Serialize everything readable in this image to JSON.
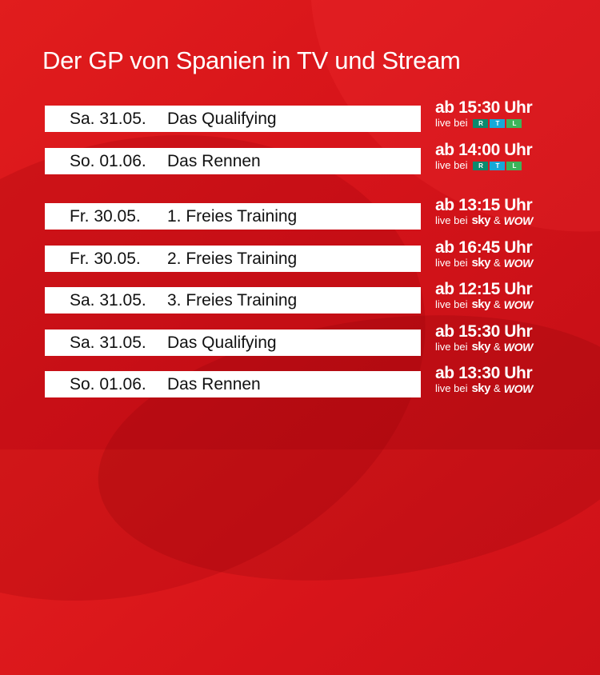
{
  "title": "Der GP von Spanien in TV und Stream",
  "colors": {
    "background": "#d7141a",
    "bar": "#ffffff",
    "text_dark": "#111111",
    "text_light": "#ffffff"
  },
  "groups": [
    {
      "channel": "RTL",
      "rows": [
        {
          "date": "Sa. 31.05.",
          "event": "Das Qualifying",
          "time": "ab 15:30 Uhr",
          "live_prefix": "live bei",
          "logo_letters": [
            "R",
            "T",
            "L"
          ]
        },
        {
          "date": "So. 01.06.",
          "event": "Das Rennen",
          "time": "ab 14:00 Uhr",
          "live_prefix": "live bei",
          "logo_letters": [
            "R",
            "T",
            "L"
          ]
        }
      ]
    },
    {
      "channel": "Sky & WOW",
      "rows": [
        {
          "date": "Fr. 30.05.",
          "event": "1. Freies Training",
          "time": "ab 13:15 Uhr",
          "live_prefix": "live bei",
          "logo_sky": "sky",
          "amp": "&",
          "logo_wow": "WOW"
        },
        {
          "date": "Fr. 30.05.",
          "event": "2. Freies Training",
          "time": "ab 16:45 Uhr",
          "live_prefix": "live bei",
          "logo_sky": "sky",
          "amp": "&",
          "logo_wow": "WOW"
        },
        {
          "date": "Sa. 31.05.",
          "event": "3. Freies Training",
          "time": "ab 12:15 Uhr",
          "live_prefix": "live bei",
          "logo_sky": "sky",
          "amp": "&",
          "logo_wow": "WOW"
        },
        {
          "date": "Sa. 31.05.",
          "event": "Das Qualifying",
          "time": "ab 15:30 Uhr",
          "live_prefix": "live bei",
          "logo_sky": "sky",
          "amp": "&",
          "logo_wow": "WOW"
        },
        {
          "date": "So. 01.06.",
          "event": "Das Rennen",
          "time": "ab 13:30 Uhr",
          "live_prefix": "live bei",
          "logo_sky": "sky",
          "amp": "&",
          "logo_wow": "WOW"
        }
      ]
    }
  ]
}
